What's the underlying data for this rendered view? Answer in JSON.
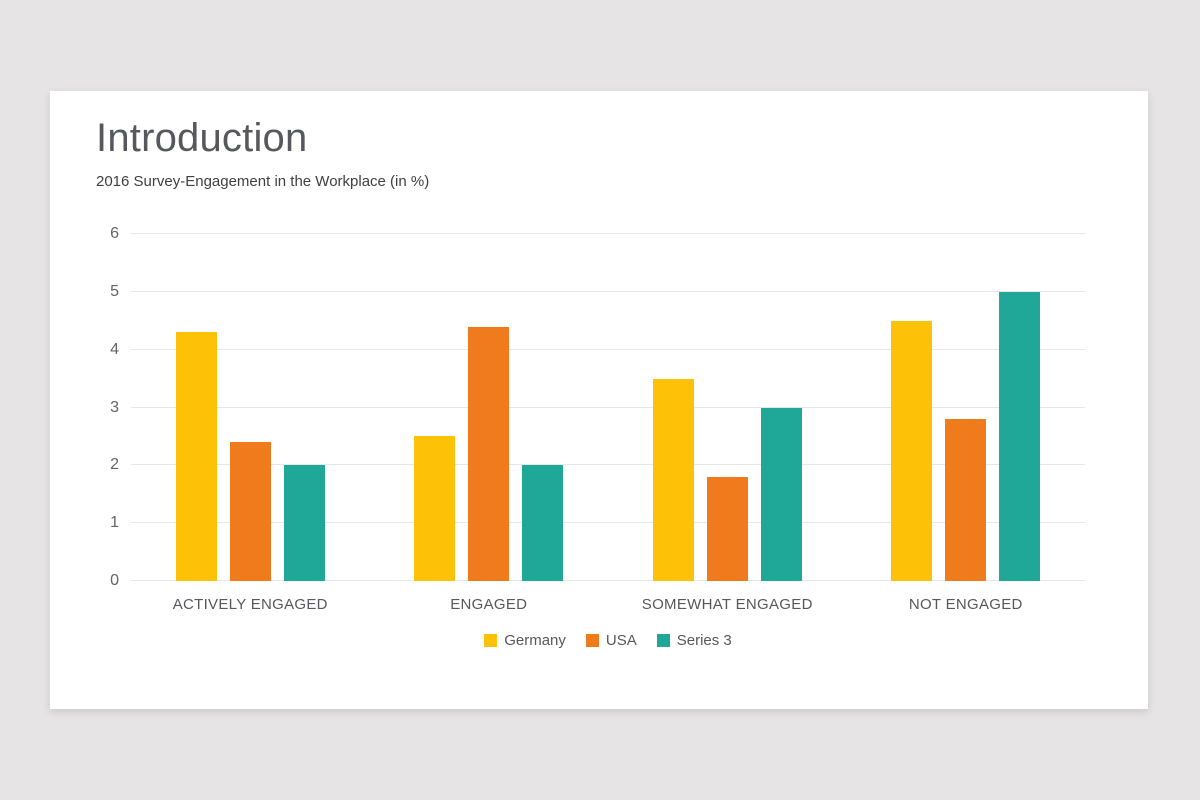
{
  "slide": {
    "title": "Introduction",
    "subtitle": "2016 Survey-Engagement in the Workplace (in %)"
  },
  "chart_data": {
    "type": "bar",
    "title": "2016 Survey-Engagement in the Workplace (in %)",
    "categories": [
      "ACTIVELY ENGAGED",
      "ENGAGED",
      "SOMEWHAT ENGAGED",
      "NOT ENGAGED"
    ],
    "series": [
      {
        "name": "Germany",
        "color": "#FDC107",
        "values": [
          4.3,
          2.5,
          3.5,
          4.5
        ]
      },
      {
        "name": "USA",
        "color": "#EF7B1C",
        "values": [
          2.4,
          4.4,
          1.8,
          2.8
        ]
      },
      {
        "name": "Series 3",
        "color": "#1FA898",
        "values": [
          2.0,
          2.0,
          3.0,
          5.0
        ]
      }
    ],
    "xlabel": "",
    "ylabel": "",
    "ylim": [
      0,
      6
    ],
    "y_ticks": [
      0,
      1,
      2,
      3,
      4,
      5,
      6
    ],
    "grid": true,
    "legend_position": "bottom"
  },
  "colors": {
    "background": "#E6E4E4",
    "card": "#FFFFFF",
    "title_text": "#57585B",
    "subtitle_text": "#3F3F3F",
    "axis_text": "#646464",
    "category_text": "#57585B",
    "gridline": "#E7E7E7"
  }
}
